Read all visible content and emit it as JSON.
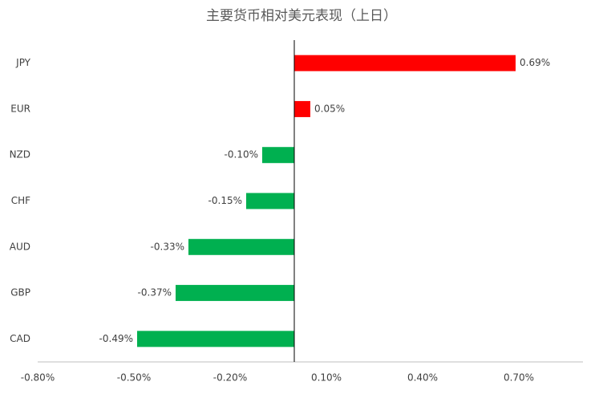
{
  "chart_data": {
    "type": "hbar",
    "title": "主要货币相对美元表现（上日）",
    "categories": [
      "JPY",
      "EUR",
      "NZD",
      "CHF",
      "AUD",
      "GBP",
      "CAD"
    ],
    "values": [
      0.69,
      0.05,
      -0.1,
      -0.15,
      -0.33,
      -0.37,
      -0.49
    ],
    "value_labels": [
      "0.69%",
      "0.05%",
      "-0.10%",
      "-0.15%",
      "-0.33%",
      "-0.37%",
      "-0.49%"
    ],
    "colors": [
      "#ff0000",
      "#ff0000",
      "#00b050",
      "#00b050",
      "#00b050",
      "#00b050",
      "#00b050"
    ],
    "xlim": [
      -0.8,
      0.9
    ],
    "xticks": [
      {
        "value": -0.8,
        "label": "-0.80%"
      },
      {
        "value": -0.5,
        "label": "-0.50%"
      },
      {
        "value": -0.2,
        "label": "-0.20%"
      },
      {
        "value": 0.1,
        "label": "0.10%"
      },
      {
        "value": 0.4,
        "label": "0.40%"
      },
      {
        "value": 0.7,
        "label": "0.70%"
      }
    ],
    "grid": false
  }
}
